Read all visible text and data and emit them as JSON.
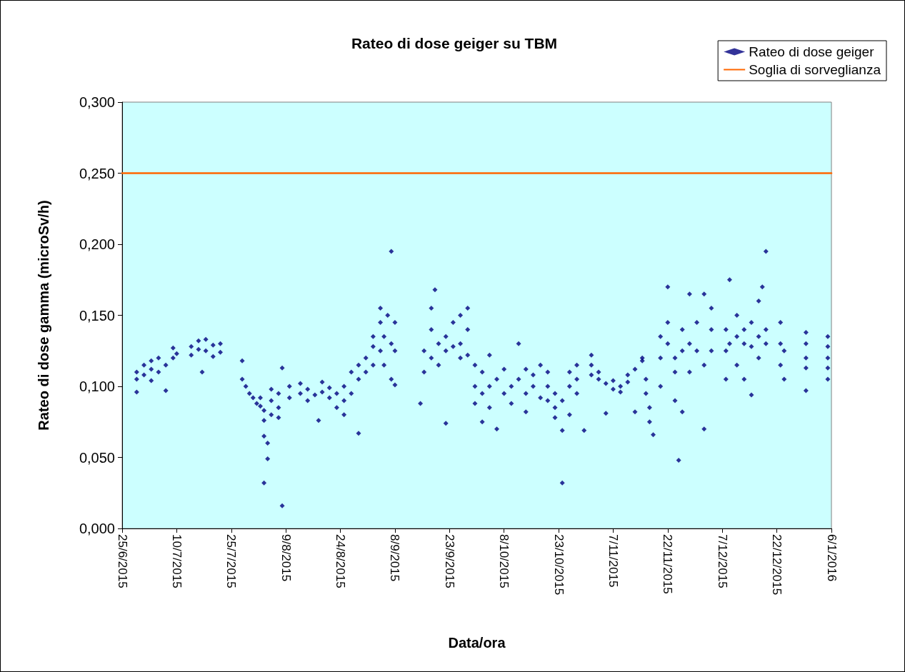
{
  "chart_data": {
    "type": "scatter",
    "title": "Rateo di dose geiger su TBM",
    "xlabel": "Data/ora",
    "ylabel": "Rateo di dose gamma (microSv/h)",
    "xlim": [
      "2015-06-25",
      "2016-01-06"
    ],
    "xticks": [
      {
        "value": "2015-06-25",
        "label": "25/6/2015"
      },
      {
        "value": "2015-07-10",
        "label": "10/7/2015"
      },
      {
        "value": "2015-07-25",
        "label": "25/7/2015"
      },
      {
        "value": "2015-08-09",
        "label": "9/8/2015"
      },
      {
        "value": "2015-08-24",
        "label": "24/8/2015"
      },
      {
        "value": "2015-09-08",
        "label": "8/9/2015"
      },
      {
        "value": "2015-09-23",
        "label": "23/9/2015"
      },
      {
        "value": "2015-10-08",
        "label": "8/10/2015"
      },
      {
        "value": "2015-10-23",
        "label": "23/10/2015"
      },
      {
        "value": "2015-11-07",
        "label": "7/11/2015"
      },
      {
        "value": "2015-11-22",
        "label": "22/11/2015"
      },
      {
        "value": "2015-12-07",
        "label": "7/12/2015"
      },
      {
        "value": "2015-12-22",
        "label": "22/12/2015"
      },
      {
        "value": "2016-01-06",
        "label": "6/1/2016"
      }
    ],
    "ylim": [
      0,
      0.3
    ],
    "yticks": [
      {
        "value": 0,
        "label": "0,000"
      },
      {
        "value": 0.05,
        "label": "0,050"
      },
      {
        "value": 0.1,
        "label": "0,100"
      },
      {
        "value": 0.15,
        "label": "0,150"
      },
      {
        "value": 0.2,
        "label": "0,200"
      },
      {
        "value": 0.25,
        "label": "0,250"
      },
      {
        "value": 0.3,
        "label": "0,300"
      }
    ],
    "grid": false,
    "legend": "top right",
    "marker": "diamond",
    "series": [
      {
        "name": "Rateo di dose geiger",
        "color": "#000080",
        "x": [
          "2015-06-29",
          "2015-06-29",
          "2015-06-29",
          "2015-07-01",
          "2015-07-01",
          "2015-07-03",
          "2015-07-03",
          "2015-07-03",
          "2015-07-05",
          "2015-07-05",
          "2015-07-07",
          "2015-07-07",
          "2015-07-09",
          "2015-07-09",
          "2015-07-10",
          "2015-07-14",
          "2015-07-14",
          "2015-07-16",
          "2015-07-16",
          "2015-07-17",
          "2015-07-18",
          "2015-07-18",
          "2015-07-20",
          "2015-07-20",
          "2015-07-22",
          "2015-07-22",
          "2015-07-28",
          "2015-07-28",
          "2015-07-29",
          "2015-07-30",
          "2015-07-31",
          "2015-08-01",
          "2015-08-02",
          "2015-08-02",
          "2015-08-03",
          "2015-08-03",
          "2015-08-03",
          "2015-08-03",
          "2015-08-04",
          "2015-08-04",
          "2015-08-05",
          "2015-08-05",
          "2015-08-05",
          "2015-08-07",
          "2015-08-07",
          "2015-08-07",
          "2015-08-08",
          "2015-08-08",
          "2015-08-10",
          "2015-08-10",
          "2015-08-13",
          "2015-08-13",
          "2015-08-15",
          "2015-08-15",
          "2015-08-17",
          "2015-08-18",
          "2015-08-19",
          "2015-08-19",
          "2015-08-21",
          "2015-08-21",
          "2015-08-23",
          "2015-08-23",
          "2015-08-25",
          "2015-08-25",
          "2015-08-25",
          "2015-08-27",
          "2015-08-27",
          "2015-08-29",
          "2015-08-29",
          "2015-08-29",
          "2015-08-31",
          "2015-08-31",
          "2015-09-02",
          "2015-09-02",
          "2015-09-02",
          "2015-09-04",
          "2015-09-04",
          "2015-09-04",
          "2015-09-05",
          "2015-09-05",
          "2015-09-06",
          "2015-09-07",
          "2015-09-07",
          "2015-09-07",
          "2015-09-08",
          "2015-09-08",
          "2015-09-08",
          "2015-09-15",
          "2015-09-16",
          "2015-09-16",
          "2015-09-18",
          "2015-09-18",
          "2015-09-18",
          "2015-09-19",
          "2015-09-20",
          "2015-09-20",
          "2015-09-22",
          "2015-09-22",
          "2015-09-22",
          "2015-09-24",
          "2015-09-24",
          "2015-09-26",
          "2015-09-26",
          "2015-09-26",
          "2015-09-28",
          "2015-09-28",
          "2015-09-28",
          "2015-09-30",
          "2015-09-30",
          "2015-09-30",
          "2015-10-02",
          "2015-10-02",
          "2015-10-02",
          "2015-10-04",
          "2015-10-04",
          "2015-10-04",
          "2015-10-06",
          "2015-10-06",
          "2015-10-08",
          "2015-10-08",
          "2015-10-10",
          "2015-10-10",
          "2015-10-12",
          "2015-10-12",
          "2015-10-14",
          "2015-10-14",
          "2015-10-14",
          "2015-10-16",
          "2015-10-16",
          "2015-10-18",
          "2015-10-18",
          "2015-10-20",
          "2015-10-20",
          "2015-10-20",
          "2015-10-22",
          "2015-10-22",
          "2015-10-22",
          "2015-10-24",
          "2015-10-24",
          "2015-10-24",
          "2015-10-26",
          "2015-10-26",
          "2015-10-26",
          "2015-10-28",
          "2015-10-28",
          "2015-10-28",
          "2015-10-30",
          "2015-11-01",
          "2015-11-01",
          "2015-11-01",
          "2015-11-03",
          "2015-11-03",
          "2015-11-05",
          "2015-11-05",
          "2015-11-07",
          "2015-11-07",
          "2015-11-09",
          "2015-11-09",
          "2015-11-11",
          "2015-11-11",
          "2015-11-13",
          "2015-11-13",
          "2015-11-15",
          "2015-11-15",
          "2015-11-16",
          "2015-11-16",
          "2015-11-17",
          "2015-11-17",
          "2015-11-18",
          "2015-11-20",
          "2015-11-20",
          "2015-11-20",
          "2015-11-22",
          "2015-11-22",
          "2015-11-22",
          "2015-11-24",
          "2015-11-24",
          "2015-11-24",
          "2015-11-25",
          "2015-11-26",
          "2015-11-26",
          "2015-11-26",
          "2015-11-28",
          "2015-11-28",
          "2015-11-28",
          "2015-11-30",
          "2015-11-30",
          "2015-12-02",
          "2015-12-02",
          "2015-12-02",
          "2015-12-04",
          "2015-12-04",
          "2015-12-04",
          "2015-12-08",
          "2015-12-08",
          "2015-12-08",
          "2015-12-09",
          "2015-12-09",
          "2015-12-11",
          "2015-12-11",
          "2015-12-11",
          "2015-12-13",
          "2015-12-13",
          "2015-12-13",
          "2015-12-15",
          "2015-12-15",
          "2015-12-15",
          "2015-12-17",
          "2015-12-17",
          "2015-12-17",
          "2015-12-18",
          "2015-12-19",
          "2015-12-19",
          "2015-12-19",
          "2015-12-23",
          "2015-12-23",
          "2015-12-23",
          "2015-12-24",
          "2015-12-24",
          "2015-12-30",
          "2015-12-30",
          "2015-12-30",
          "2015-12-30",
          "2015-12-30",
          "2016-01-05",
          "2016-01-05",
          "2016-01-05",
          "2016-01-05",
          "2016-01-05"
        ],
        "values": [
          0.096,
          0.105,
          0.11,
          0.108,
          0.115,
          0.112,
          0.118,
          0.104,
          0.11,
          0.12,
          0.115,
          0.097,
          0.12,
          0.127,
          0.123,
          0.122,
          0.128,
          0.126,
          0.132,
          0.11,
          0.125,
          0.133,
          0.121,
          0.129,
          0.124,
          0.13,
          0.118,
          0.105,
          0.1,
          0.095,
          0.092,
          0.088,
          0.086,
          0.092,
          0.083,
          0.076,
          0.065,
          0.032,
          0.06,
          0.049,
          0.08,
          0.09,
          0.098,
          0.085,
          0.078,
          0.095,
          0.016,
          0.113,
          0.092,
          0.1,
          0.095,
          0.102,
          0.09,
          0.098,
          0.094,
          0.076,
          0.096,
          0.103,
          0.092,
          0.099,
          0.095,
          0.085,
          0.09,
          0.1,
          0.08,
          0.095,
          0.11,
          0.067,
          0.105,
          0.115,
          0.11,
          0.12,
          0.115,
          0.128,
          0.135,
          0.125,
          0.145,
          0.155,
          0.135,
          0.115,
          0.15,
          0.195,
          0.13,
          0.105,
          0.145,
          0.125,
          0.101,
          0.088,
          0.11,
          0.125,
          0.12,
          0.14,
          0.155,
          0.168,
          0.13,
          0.115,
          0.074,
          0.135,
          0.125,
          0.128,
          0.145,
          0.13,
          0.12,
          0.15,
          0.14,
          0.122,
          0.155,
          0.1,
          0.115,
          0.088,
          0.095,
          0.11,
          0.075,
          0.1,
          0.085,
          0.122,
          0.07,
          0.105,
          0.095,
          0.112,
          0.1,
          0.088,
          0.105,
          0.13,
          0.095,
          0.082,
          0.112,
          0.1,
          0.108,
          0.092,
          0.115,
          0.09,
          0.1,
          0.11,
          0.095,
          0.085,
          0.078,
          0.09,
          0.069,
          0.032,
          0.1,
          0.11,
          0.08,
          0.105,
          0.115,
          0.095,
          0.069,
          0.115,
          0.122,
          0.108,
          0.11,
          0.105,
          0.102,
          0.081,
          0.098,
          0.104,
          0.1,
          0.096,
          0.103,
          0.108,
          0.112,
          0.082,
          0.118,
          0.12,
          0.105,
          0.095,
          0.085,
          0.075,
          0.066,
          0.12,
          0.135,
          0.1,
          0.17,
          0.13,
          0.145,
          0.12,
          0.09,
          0.11,
          0.048,
          0.14,
          0.125,
          0.082,
          0.165,
          0.13,
          0.11,
          0.125,
          0.145,
          0.115,
          0.07,
          0.165,
          0.155,
          0.14,
          0.125,
          0.125,
          0.14,
          0.105,
          0.175,
          0.13,
          0.135,
          0.15,
          0.115,
          0.13,
          0.14,
          0.105,
          0.128,
          0.094,
          0.145,
          0.135,
          0.12,
          0.16,
          0.17,
          0.195,
          0.14,
          0.13,
          0.145,
          0.13,
          0.115,
          0.105,
          0.125,
          0.138,
          0.13,
          0.12,
          0.113,
          0.097,
          0.135,
          0.128,
          0.12,
          0.113,
          0.105
        ]
      },
      {
        "name": "Soglia di sorveglianza",
        "type": "line",
        "color": "#ff6600",
        "marker": "none",
        "line_style": "solid",
        "x": [
          "2015-06-25",
          "2016-01-06"
        ],
        "values": [
          0.25,
          0.25
        ]
      }
    ]
  }
}
